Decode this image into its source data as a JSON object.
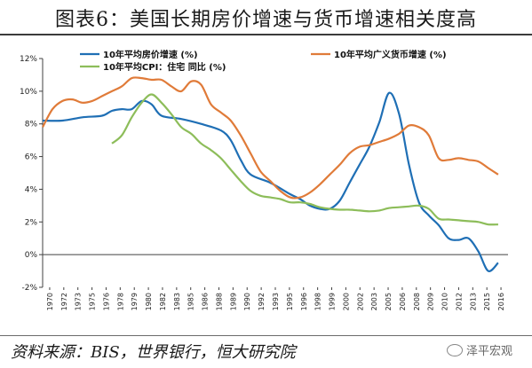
{
  "header": {
    "title": "图表6：美国长期房价增速与货币增速相关度高"
  },
  "footer": {
    "source": "资料来源：BIS，世界银行，恒大研究院",
    "watermark": "泽平宏观"
  },
  "chart_data": {
    "type": "line",
    "title": "",
    "xlabel": "",
    "ylabel": "",
    "ylim": [
      -2,
      12
    ],
    "xlim": [
      1970,
      2017
    ],
    "grid": false,
    "legend_position": "top",
    "y_ticks": [
      -2,
      0,
      2,
      4,
      6,
      8,
      10,
      12
    ],
    "y_tick_labels": [
      "-2%",
      "0%",
      "2%",
      "4%",
      "6%",
      "8%",
      "10%",
      "12%"
    ],
    "x_tick_labels": [
      "1970",
      "1972",
      "1973",
      "1975",
      "1976",
      "1978",
      "1979",
      "1980",
      "1982",
      "1983",
      "1985",
      "1986",
      "1988",
      "1989",
      "1990",
      "1992",
      "1993",
      "1995",
      "1996",
      "1998",
      "1999",
      "2000",
      "2002",
      "2003",
      "2005",
      "2006",
      "2008",
      "2009",
      "2010",
      "2012",
      "2013",
      "2015",
      "2016"
    ],
    "series": [
      {
        "name": "10年平均房价增速 (%)",
        "color": "#1f6fb5",
        "points": [
          [
            1970,
            8.2
          ],
          [
            1972,
            8.2
          ],
          [
            1974,
            8.4
          ],
          [
            1976,
            8.5
          ],
          [
            1977,
            8.8
          ],
          [
            1978,
            8.9
          ],
          [
            1979,
            8.9
          ],
          [
            1980,
            9.4
          ],
          [
            1981,
            9.2
          ],
          [
            1982,
            8.5
          ],
          [
            1984,
            8.3
          ],
          [
            1986,
            8.0
          ],
          [
            1988,
            7.6
          ],
          [
            1989,
            7.0
          ],
          [
            1990,
            5.8
          ],
          [
            1991,
            4.9
          ],
          [
            1993,
            4.4
          ],
          [
            1995,
            3.7
          ],
          [
            1996,
            3.4
          ],
          [
            1997,
            3.0
          ],
          [
            1998,
            2.8
          ],
          [
            1999,
            2.8
          ],
          [
            2000,
            3.3
          ],
          [
            2001,
            4.4
          ],
          [
            2002,
            5.5
          ],
          [
            2003,
            6.6
          ],
          [
            2004,
            8.1
          ],
          [
            2005,
            9.9
          ],
          [
            2006,
            8.6
          ],
          [
            2007,
            5.5
          ],
          [
            2008,
            3.2
          ],
          [
            2009,
            2.4
          ],
          [
            2010,
            1.8
          ],
          [
            2011,
            1.0
          ],
          [
            2012,
            0.9
          ],
          [
            2013,
            1.0
          ],
          [
            2014,
            0.2
          ],
          [
            2015,
            -1.0
          ],
          [
            2016,
            -0.5
          ]
        ]
      },
      {
        "name": "10年平均广义货币增速 (%)",
        "color": "#e07b39",
        "points": [
          [
            1970,
            7.8
          ],
          [
            1971,
            8.9
          ],
          [
            1972,
            9.4
          ],
          [
            1973,
            9.5
          ],
          [
            1974,
            9.3
          ],
          [
            1975,
            9.4
          ],
          [
            1976,
            9.7
          ],
          [
            1977,
            10.0
          ],
          [
            1978,
            10.3
          ],
          [
            1979,
            10.8
          ],
          [
            1980,
            10.8
          ],
          [
            1981,
            10.7
          ],
          [
            1982,
            10.7
          ],
          [
            1983,
            10.3
          ],
          [
            1984,
            10.0
          ],
          [
            1985,
            10.6
          ],
          [
            1986,
            10.4
          ],
          [
            1987,
            9.2
          ],
          [
            1988,
            8.7
          ],
          [
            1989,
            8.2
          ],
          [
            1990,
            7.3
          ],
          [
            1991,
            6.2
          ],
          [
            1992,
            5.1
          ],
          [
            1993,
            4.5
          ],
          [
            1994,
            3.9
          ],
          [
            1995,
            3.5
          ],
          [
            1996,
            3.5
          ],
          [
            1997,
            3.8
          ],
          [
            1998,
            4.3
          ],
          [
            1999,
            4.9
          ],
          [
            2000,
            5.5
          ],
          [
            2001,
            6.2
          ],
          [
            2002,
            6.6
          ],
          [
            2003,
            6.7
          ],
          [
            2004,
            6.9
          ],
          [
            2005,
            7.1
          ],
          [
            2006,
            7.4
          ],
          [
            2007,
            7.9
          ],
          [
            2008,
            7.8
          ],
          [
            2009,
            7.3
          ],
          [
            2010,
            5.9
          ],
          [
            2011,
            5.8
          ],
          [
            2012,
            5.9
          ],
          [
            2013,
            5.8
          ],
          [
            2014,
            5.7
          ],
          [
            2015,
            5.3
          ],
          [
            2016,
            4.9
          ]
        ]
      },
      {
        "name": "10年平均CPI：住宅 同比 (%)",
        "color": "#8dbd5a",
        "points": [
          [
            1977,
            6.8
          ],
          [
            1978,
            7.3
          ],
          [
            1979,
            8.4
          ],
          [
            1980,
            9.3
          ],
          [
            1981,
            9.8
          ],
          [
            1982,
            9.3
          ],
          [
            1983,
            8.6
          ],
          [
            1984,
            7.8
          ],
          [
            1985,
            7.4
          ],
          [
            1986,
            6.8
          ],
          [
            1987,
            6.4
          ],
          [
            1988,
            5.9
          ],
          [
            1989,
            5.2
          ],
          [
            1990,
            4.5
          ],
          [
            1991,
            3.9
          ],
          [
            1992,
            3.6
          ],
          [
            1993,
            3.5
          ],
          [
            1994,
            3.4
          ],
          [
            1995,
            3.2
          ],
          [
            1996,
            3.2
          ],
          [
            1997,
            3.1
          ],
          [
            1998,
            2.9
          ],
          [
            1999,
            2.8
          ],
          [
            2000,
            2.75
          ],
          [
            2001,
            2.75
          ],
          [
            2002,
            2.7
          ],
          [
            2003,
            2.65
          ],
          [
            2004,
            2.7
          ],
          [
            2005,
            2.85
          ],
          [
            2006,
            2.9
          ],
          [
            2007,
            2.95
          ],
          [
            2008,
            3.0
          ],
          [
            2009,
            2.8
          ],
          [
            2010,
            2.2
          ],
          [
            2011,
            2.15
          ],
          [
            2012,
            2.1
          ],
          [
            2013,
            2.05
          ],
          [
            2014,
            2.0
          ],
          [
            2015,
            1.85
          ],
          [
            2016,
            1.85
          ]
        ]
      }
    ]
  }
}
